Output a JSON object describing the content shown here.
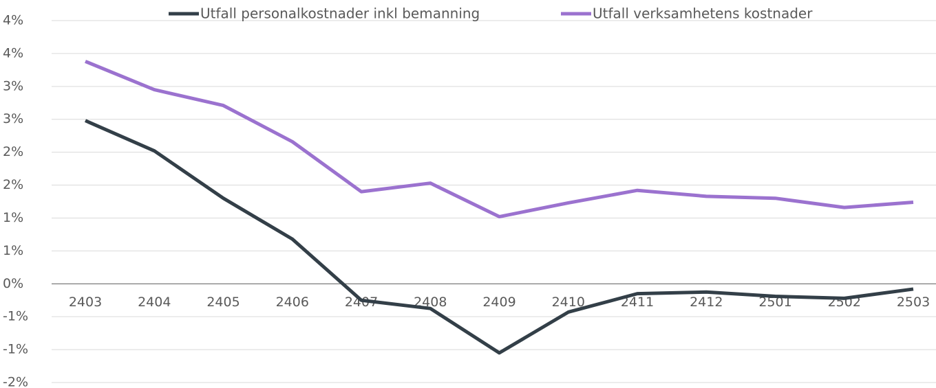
{
  "chart_data": {
    "type": "line",
    "categories": [
      "2403",
      "2404",
      "2405",
      "2406",
      "2407",
      "2408",
      "2409",
      "2410",
      "2411",
      "2412",
      "2501",
      "2502",
      "2503"
    ],
    "series": [
      {
        "name": "Utfall personalkostnader inkl bemanning",
        "color": "#333f48",
        "values": [
          2.48,
          2.02,
          1.3,
          0.68,
          -0.25,
          -0.375,
          -1.05,
          -0.43,
          -0.15,
          -0.125,
          -0.19,
          -0.22,
          -0.08
        ]
      },
      {
        "name": "Utfall verksamhetens kostnader",
        "color": "#9b72cf",
        "values": [
          3.38,
          2.95,
          2.71,
          2.16,
          1.4,
          1.53,
          1.02,
          1.23,
          1.42,
          1.33,
          1.3,
          1.16,
          1.24
        ]
      }
    ],
    "ylim": [
      -1.5,
      4
    ],
    "yticks": [
      {
        "value": -1.5,
        "label": "-2%"
      },
      {
        "value": -1,
        "label": "-1%"
      },
      {
        "value": -0.5,
        "label": "-1%"
      },
      {
        "value": 0,
        "label": "0%"
      },
      {
        "value": 0.5,
        "label": "1%"
      },
      {
        "value": 1,
        "label": "1%"
      },
      {
        "value": 1.5,
        "label": "2%"
      },
      {
        "value": 2,
        "label": "2%"
      },
      {
        "value": 2.5,
        "label": "3%"
      },
      {
        "value": 3,
        "label": "3%"
      },
      {
        "value": 3.5,
        "label": "4%"
      },
      {
        "value": 4,
        "label": "4%"
      }
    ],
    "grid": true,
    "legend": "top"
  }
}
